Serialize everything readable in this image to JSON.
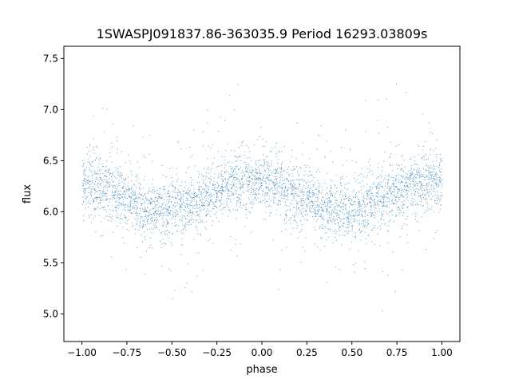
{
  "chart_data": {
    "type": "scatter",
    "title": "1SWASPJ091837.86-363035.9 Period 16293.03809s",
    "xlabel": "phase",
    "ylabel": "flux",
    "xlim": [
      -1.1,
      1.1
    ],
    "ylim": [
      4.73,
      7.62
    ],
    "xticks": [
      -1.0,
      -0.75,
      -0.5,
      -0.25,
      0.0,
      0.25,
      0.5,
      0.75,
      1.0
    ],
    "xtick_labels": [
      "−1.00",
      "−0.75",
      "−0.50",
      "−0.25",
      "0.00",
      "0.25",
      "0.50",
      "0.75",
      "1.00"
    ],
    "yticks": [
      5.0,
      5.5,
      6.0,
      6.5,
      7.0,
      7.5
    ],
    "ytick_labels": [
      "5.0",
      "5.5",
      "6.0",
      "6.5",
      "7.0",
      "7.5"
    ],
    "grid": false,
    "legend": "none",
    "point_color": "#1f77b4",
    "series": [
      {
        "x": [
          -1.0,
          -0.975,
          -0.95,
          -0.925,
          -0.9,
          -0.875,
          -0.85,
          -0.825,
          -0.8,
          -0.775,
          -0.75,
          -0.725,
          -0.7,
          -0.675,
          -0.65,
          -0.625,
          -0.6,
          -0.575,
          -0.55,
          -0.525,
          -0.5,
          -0.475,
          -0.45,
          -0.425,
          -0.4,
          -0.375,
          -0.35,
          -0.325,
          -0.3,
          -0.275,
          -0.25,
          -0.225,
          -0.2,
          -0.175,
          -0.15,
          -0.125,
          -0.1,
          -0.075,
          -0.05,
          -0.025,
          0.0,
          0.025,
          0.05,
          0.075,
          0.1,
          0.125,
          0.15,
          0.175,
          0.2,
          0.225,
          0.25,
          0.275,
          0.3,
          0.325,
          0.35,
          0.375,
          0.4,
          0.425,
          0.45,
          0.475,
          0.5,
          0.525,
          0.55,
          0.575,
          0.6,
          0.625,
          0.65,
          0.675,
          0.7,
          0.725,
          0.75,
          0.775,
          0.8,
          0.825,
          0.85,
          0.875,
          0.9,
          0.925,
          0.95,
          0.975,
          1.0
        ],
        "y": [
          6.3,
          6.3,
          6.29,
          6.27,
          6.25,
          6.23,
          6.21,
          6.19,
          6.17,
          6.15,
          6.12,
          6.1,
          6.08,
          6.06,
          6.05,
          6.04,
          6.03,
          6.03,
          6.03,
          6.03,
          6.03,
          6.04,
          6.05,
          6.06,
          6.08,
          6.1,
          6.12,
          6.15,
          6.17,
          6.19,
          6.21,
          6.23,
          6.25,
          6.27,
          6.29,
          6.3,
          6.3,
          6.3,
          6.3,
          6.3,
          6.3,
          6.3,
          6.29,
          6.27,
          6.25,
          6.23,
          6.21,
          6.19,
          6.17,
          6.15,
          6.12,
          6.1,
          6.08,
          6.06,
          6.05,
          6.04,
          6.03,
          6.03,
          6.03,
          6.03,
          6.03,
          6.04,
          6.05,
          6.06,
          6.08,
          6.1,
          6.12,
          6.15,
          6.17,
          6.19,
          6.21,
          6.23,
          6.25,
          6.27,
          6.29,
          6.3,
          6.3,
          6.3,
          6.3,
          6.3,
          6.3
        ]
      }
    ]
  }
}
